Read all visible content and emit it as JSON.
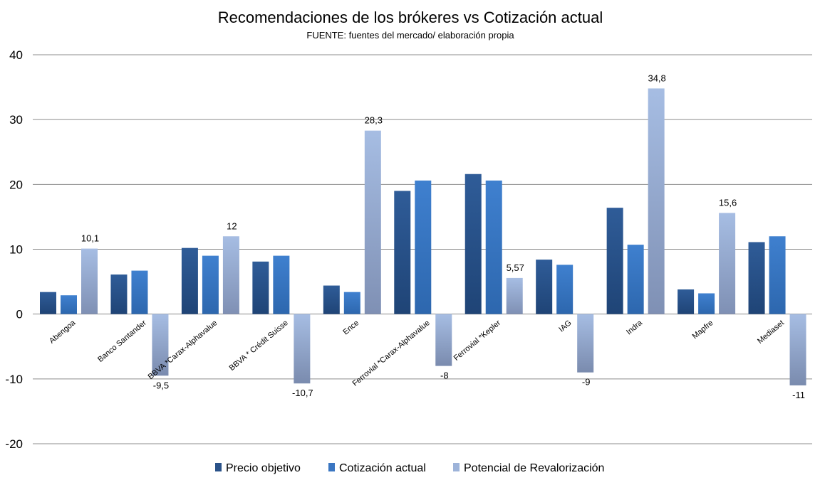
{
  "chart_data": {
    "type": "bar",
    "title": "Recomendaciones de los brókeres vs Cotización actual",
    "subtitle": "FUENTE: fuentes del mercado/ elaboración propia",
    "xlabel": "",
    "ylabel": "",
    "ylim": [
      -20,
      40
    ],
    "yticks": [
      "40",
      "30",
      "20",
      "10",
      "0",
      "-10",
      "-20"
    ],
    "ytick_values": [
      40,
      30,
      20,
      10,
      0,
      -10,
      -20
    ],
    "grid": true,
    "legend_position": "bottom",
    "categories": [
      "Abengoa",
      "Banco Santander",
      "BBVA *Carax-Alphavalue",
      "BBVA * Crédit Suisse",
      "Ence",
      "Ferrovial *Carax-Alphavalue",
      "Ferrovial *Kepler",
      "IAG",
      "Indra",
      "Mapfre",
      "Mediaset"
    ],
    "series": [
      {
        "name": "Precio objetivo",
        "color": "#2a5289",
        "values": [
          3.4,
          6.1,
          10.2,
          8.1,
          4.4,
          19.0,
          21.6,
          8.4,
          16.4,
          3.8,
          11.1
        ]
      },
      {
        "name": "Cotización actual",
        "color": "#3a76c2",
        "values": [
          2.9,
          6.7,
          9.0,
          9.0,
          3.4,
          20.6,
          20.6,
          7.6,
          10.7,
          3.2,
          12.0
        ]
      },
      {
        "name": "Potencial de Revalorización",
        "color": "#9db3d9",
        "values": [
          10.1,
          -9.5,
          12,
          -10.7,
          28.3,
          -8,
          5.57,
          -9,
          34.8,
          15.6,
          -11
        ]
      }
    ],
    "data_labels": [
      "10,1",
      "-9,5",
      "12",
      "-10,7",
      "28,3",
      "-8",
      "5,57",
      "-9",
      "34,8",
      "15,6",
      "-11"
    ]
  }
}
